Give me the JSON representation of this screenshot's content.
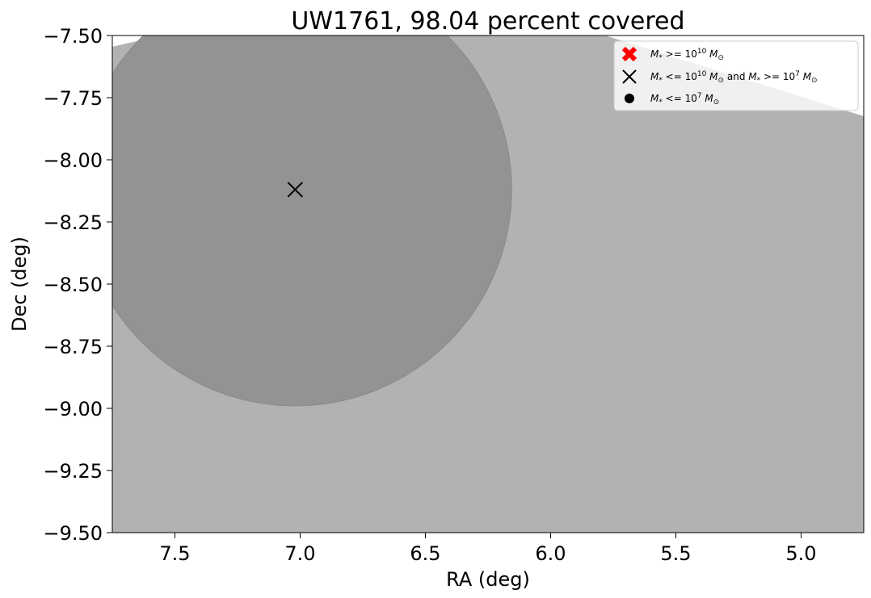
{
  "chart_data": {
    "type": "scatter",
    "title": "UW1761, 98.04 percent covered",
    "xlabel": "RA (deg)",
    "ylabel": "Dec (deg)",
    "xlim": [
      7.75,
      4.75
    ],
    "ylim": [
      -9.5,
      -7.5
    ],
    "x_ticks": [
      "7.5",
      "7.0",
      "6.5",
      "6.0",
      "5.5",
      "5.0"
    ],
    "x_tick_values": [
      7.5,
      7.0,
      6.5,
      6.0,
      5.5,
      5.0
    ],
    "y_ticks": [
      "−7.50",
      "−7.75",
      "−8.00",
      "−8.25",
      "−8.50",
      "−8.75",
      "−9.00",
      "−9.25",
      "−9.50"
    ],
    "y_tick_values": [
      -7.5,
      -7.75,
      -8.0,
      -8.25,
      -8.5,
      -8.75,
      -9.0,
      -9.25,
      -9.5
    ],
    "coverage_region_color": "#b2b2b2",
    "inner_circle": {
      "center": [
        7.02,
        -8.12
      ],
      "radius_deg": 0.87,
      "color": "#939393"
    },
    "points": [
      {
        "ra": 7.02,
        "dec": -8.12,
        "marker": "x",
        "class": "medium"
      }
    ],
    "legend": {
      "location": "upper right",
      "entries": [
        {
          "marker": "X-red",
          "color": "#ff0000",
          "label_parts": [
            "M",
            "*",
            " >= 10",
            "10",
            " M",
            "⊙"
          ]
        },
        {
          "marker": "x",
          "color": "#000000",
          "label_parts": [
            "M",
            "*",
            " <= 10",
            "10",
            " M",
            "⊙",
            " and ",
            "M",
            "*",
            " >= 10",
            "7",
            " M",
            "⊙"
          ]
        },
        {
          "marker": "dot",
          "color": "#000000",
          "label_parts": [
            "M",
            "*",
            " <= 10",
            "7",
            " M",
            "⊙"
          ]
        }
      ]
    },
    "grid": false
  }
}
